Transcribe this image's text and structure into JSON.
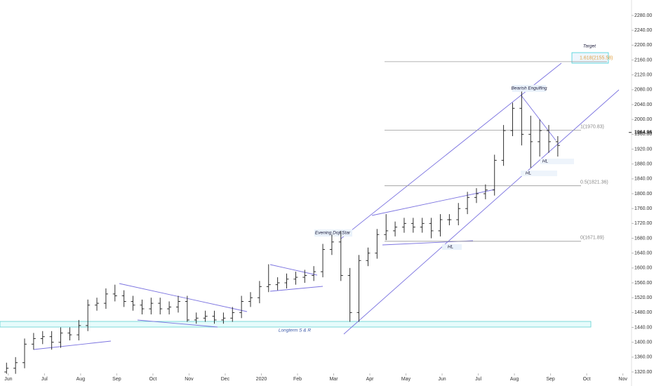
{
  "chart_data": {
    "type": "ohlc",
    "color": "#1a1a1a",
    "x": [
      -0.05,
      0.2,
      0.45,
      0.7,
      0.95,
      1.2,
      1.45,
      1.7,
      1.95,
      2.2,
      2.45,
      2.7,
      2.95,
      3.2,
      3.45,
      3.7,
      3.95,
      4.2,
      4.45,
      4.7,
      4.95,
      5.2,
      5.45,
      5.7,
      5.95,
      6.2,
      6.45,
      6.7,
      6.95,
      7.2,
      7.45,
      7.7,
      7.95,
      8.2,
      8.45,
      8.7,
      8.95,
      9.2,
      9.45,
      9.7,
      9.95,
      10.2,
      10.45,
      10.7,
      10.95,
      11.2,
      11.45,
      11.7,
      11.95,
      12.2,
      12.45,
      12.7,
      12.95,
      13.2,
      13.45,
      13.7,
      13.95,
      14.2,
      14.45,
      14.7,
      14.95,
      15.2
    ],
    "open": [
      1320,
      1330,
      1345,
      1395,
      1410,
      1415,
      1400,
      1425,
      1420,
      1445,
      1500,
      1505,
      1530,
      1525,
      1510,
      1500,
      1490,
      1505,
      1490,
      1495,
      1510,
      1460,
      1465,
      1470,
      1460,
      1465,
      1480,
      1510,
      1520,
      1550,
      1555,
      1560,
      1570,
      1575,
      1580,
      1590,
      1650,
      1670,
      1580,
      1480,
      1620,
      1640,
      1690,
      1700,
      1710,
      1720,
      1710,
      1720,
      1700,
      1730,
      1730,
      1760,
      1790,
      1800,
      1810,
      1890,
      1970,
      2030,
      1960,
      1940,
      1970,
      1940
    ],
    "high": [
      1345,
      1360,
      1410,
      1425,
      1430,
      1430,
      1440,
      1440,
      1460,
      1515,
      1520,
      1545,
      1555,
      1540,
      1525,
      1515,
      1520,
      1520,
      1510,
      1525,
      1525,
      1480,
      1485,
      1485,
      1480,
      1495,
      1525,
      1535,
      1565,
      1610,
      1575,
      1585,
      1590,
      1595,
      1605,
      1665,
      1690,
      1700,
      1600,
      1635,
      1655,
      1705,
      1745,
      1725,
      1735,
      1735,
      1735,
      1735,
      1745,
      1745,
      1775,
      1805,
      1815,
      1825,
      1905,
      1985,
      2045,
      2075,
      2010,
      2000,
      1985,
      1955
    ],
    "low": [
      1315,
      1315,
      1330,
      1380,
      1395,
      1380,
      1385,
      1405,
      1405,
      1430,
      1485,
      1490,
      1510,
      1495,
      1485,
      1475,
      1475,
      1475,
      1475,
      1480,
      1455,
      1450,
      1455,
      1450,
      1450,
      1455,
      1465,
      1495,
      1505,
      1535,
      1540,
      1545,
      1555,
      1560,
      1565,
      1575,
      1635,
      1565,
      1455,
      1455,
      1605,
      1625,
      1675,
      1685,
      1695,
      1695,
      1695,
      1680,
      1685,
      1715,
      1715,
      1745,
      1775,
      1785,
      1795,
      1875,
      1955,
      1930,
      1870,
      1900,
      1910,
      1900
    ],
    "close": [
      1330,
      1345,
      1395,
      1410,
      1415,
      1400,
      1425,
      1420,
      1445,
      1500,
      1505,
      1530,
      1525,
      1510,
      1500,
      1490,
      1505,
      1490,
      1495,
      1510,
      1460,
      1465,
      1470,
      1460,
      1465,
      1480,
      1510,
      1520,
      1550,
      1555,
      1560,
      1570,
      1575,
      1580,
      1590,
      1650,
      1670,
      1580,
      1480,
      1620,
      1640,
      1690,
      1700,
      1710,
      1720,
      1710,
      1720,
      1700,
      1730,
      1730,
      1760,
      1790,
      1800,
      1810,
      1890,
      1970,
      2030,
      1960,
      1940,
      1970,
      1940,
      1930
    ],
    "xlim": [
      -0.23,
      17.24
    ],
    "xticks": [
      {
        "value": 0,
        "label": "Jun"
      },
      {
        "value": 1,
        "label": "Jul"
      },
      {
        "value": 2,
        "label": "Aug"
      },
      {
        "value": 3,
        "label": "Sep"
      },
      {
        "value": 4,
        "label": "Oct"
      },
      {
        "value": 5,
        "label": "Nov"
      },
      {
        "value": 6,
        "label": "Dec"
      },
      {
        "value": 7,
        "label": "2020"
      },
      {
        "value": 8,
        "label": "Feb"
      },
      {
        "value": 9,
        "label": "Mar"
      },
      {
        "value": 10,
        "label": "Apr"
      },
      {
        "value": 11,
        "label": "May"
      },
      {
        "value": 12,
        "label": "Jun"
      },
      {
        "value": 13,
        "label": "Jul"
      },
      {
        "value": 14,
        "label": "Aug"
      },
      {
        "value": 15,
        "label": "Sep"
      },
      {
        "value": 16,
        "label": "Oct"
      },
      {
        "value": 17,
        "label": "Nov"
      }
    ],
    "ylim": [
      1320,
      2280
    ],
    "yticks": [
      {
        "value": 1320,
        "label": "1320.00"
      },
      {
        "value": 1360,
        "label": "1360.00"
      },
      {
        "value": 1400,
        "label": "1400.00"
      },
      {
        "value": 1440,
        "label": "1440.00"
      },
      {
        "value": 1480,
        "label": "1480.00"
      },
      {
        "value": 1520,
        "label": "1520.00"
      },
      {
        "value": 1560,
        "label": "1560.00"
      },
      {
        "value": 1600,
        "label": "1600.00"
      },
      {
        "value": 1640,
        "label": "1640.00"
      },
      {
        "value": 1680,
        "label": "1680.00"
      },
      {
        "value": 1720,
        "label": "1720.00"
      },
      {
        "value": 1760,
        "label": "1760.00"
      },
      {
        "value": 1800,
        "label": "1800.00"
      },
      {
        "value": 1840,
        "label": "1840.00"
      },
      {
        "value": 1880,
        "label": "1880.00"
      },
      {
        "value": 1920,
        "label": "1920.00"
      },
      {
        "value": 1960,
        "label": "1960.00"
      },
      {
        "value": 2000,
        "label": "2000.00"
      },
      {
        "value": 2040,
        "label": "2040.00"
      },
      {
        "value": 2080,
        "label": "2080.00"
      },
      {
        "value": 2120,
        "label": "2120.00"
      },
      {
        "value": 2160,
        "label": "2160.00"
      },
      {
        "value": 2200,
        "label": "2200.00"
      },
      {
        "value": 2240,
        "label": "2240.00"
      },
      {
        "value": 2280,
        "label": "2280.00"
      }
    ],
    "last_price": 1964.96,
    "fib_levels": [
      {
        "value": 2155.58,
        "label": "1.618(2155.58)"
      },
      {
        "value": 1970.83,
        "label": "1(1970.83)"
      },
      {
        "value": 1821.36,
        "label": "0.5(1821.36)"
      },
      {
        "value": 1671.89,
        "label": "0(1671.89)"
      }
    ],
    "annotations": {
      "target": "Target",
      "bearish": "Bearish Engulfing",
      "evening": "Evening Doji Star",
      "support": "Longterm S & R",
      "hl": [
        "HL",
        "HL",
        "HL"
      ]
    }
  }
}
